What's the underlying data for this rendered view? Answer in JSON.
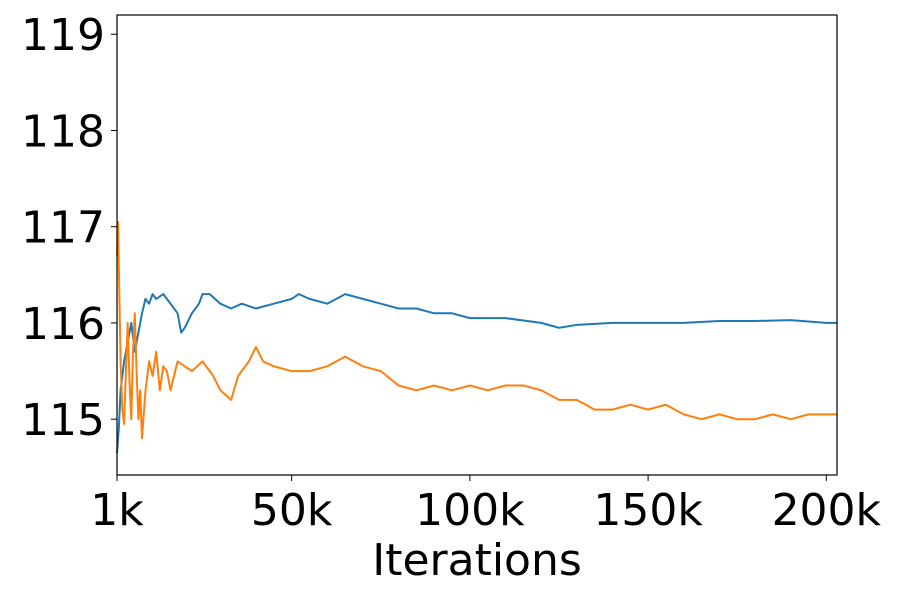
{
  "chart_data": {
    "type": "line",
    "title": "",
    "xlabel": "Iterations",
    "ylabel": "",
    "xlim": [
      1000,
      203000
    ],
    "ylim": [
      114.42,
      119.2
    ],
    "grid": false,
    "legend": "none",
    "x_ticks": [
      {
        "value": 1000,
        "label": "1k"
      },
      {
        "value": 50000,
        "label": "50k"
      },
      {
        "value": 100000,
        "label": "100k"
      },
      {
        "value": 150000,
        "label": "150k"
      },
      {
        "value": 200000,
        "label": "200k"
      }
    ],
    "y_ticks": [
      {
        "value": 115,
        "label": "115"
      },
      {
        "value": 116,
        "label": "116"
      },
      {
        "value": 117,
        "label": "117"
      },
      {
        "value": 118,
        "label": "118"
      },
      {
        "value": 119,
        "label": "119"
      }
    ],
    "series": [
      {
        "color": "#1f77b4",
        "x": [
          1000,
          1500,
          2000,
          3000,
          4000,
          5000,
          6000,
          7000,
          8000,
          9000,
          10000,
          11000,
          12000,
          14000,
          16000,
          18000,
          19000,
          20000,
          22000,
          24000,
          25000,
          27000,
          30000,
          33000,
          36000,
          40000,
          45000,
          50000,
          52000,
          55000,
          60000,
          65000,
          70000,
          75000,
          80000,
          85000,
          90000,
          95000,
          100000,
          110000,
          120000,
          125000,
          130000,
          140000,
          150000,
          160000,
          170000,
          180000,
          190000,
          200000,
          203000
        ],
        "y": [
          114.65,
          114.9,
          115.3,
          115.6,
          115.8,
          116.0,
          115.7,
          115.9,
          116.1,
          116.25,
          116.2,
          116.3,
          116.25,
          116.3,
          116.2,
          116.1,
          115.9,
          115.95,
          116.1,
          116.2,
          116.3,
          116.3,
          116.2,
          116.15,
          116.2,
          116.15,
          116.2,
          116.25,
          116.3,
          116.25,
          116.2,
          116.3,
          116.25,
          116.2,
          116.15,
          116.15,
          116.1,
          116.1,
          116.05,
          116.05,
          116.0,
          115.95,
          115.98,
          116.0,
          116.0,
          116.0,
          116.02,
          116.02,
          116.03,
          116.0,
          116.0
        ]
      },
      {
        "color": "#ff7f0e",
        "x": [
          1000,
          1300,
          1700,
          2000,
          2500,
          3000,
          3500,
          4000,
          4500,
          5000,
          5500,
          6000,
          6500,
          7000,
          7500,
          8000,
          9000,
          10000,
          11000,
          12000,
          13000,
          14000,
          15000,
          16000,
          18000,
          20000,
          22000,
          25000,
          28000,
          30000,
          33000,
          35000,
          38000,
          40000,
          42000,
          45000,
          50000,
          55000,
          60000,
          65000,
          70000,
          75000,
          80000,
          85000,
          90000,
          95000,
          100000,
          105000,
          110000,
          115000,
          120000,
          125000,
          130000,
          135000,
          140000,
          145000,
          150000,
          155000,
          160000,
          165000,
          170000,
          175000,
          180000,
          185000,
          190000,
          195000,
          200000,
          203000
        ],
        "y": [
          116.7,
          117.05,
          116.2,
          115.6,
          115.1,
          114.95,
          115.5,
          116.0,
          115.4,
          115.0,
          115.7,
          116.1,
          115.5,
          115.0,
          115.3,
          114.8,
          115.3,
          115.6,
          115.45,
          115.7,
          115.3,
          115.55,
          115.5,
          115.3,
          115.6,
          115.55,
          115.5,
          115.6,
          115.45,
          115.3,
          115.2,
          115.45,
          115.6,
          115.75,
          115.6,
          115.55,
          115.5,
          115.5,
          115.55,
          115.65,
          115.55,
          115.5,
          115.35,
          115.3,
          115.35,
          115.3,
          115.35,
          115.3,
          115.35,
          115.35,
          115.3,
          115.2,
          115.2,
          115.1,
          115.1,
          115.15,
          115.1,
          115.15,
          115.05,
          115.0,
          115.05,
          115.0,
          115.0,
          115.05,
          115.0,
          115.05,
          115.05,
          115.05
        ]
      }
    ]
  }
}
